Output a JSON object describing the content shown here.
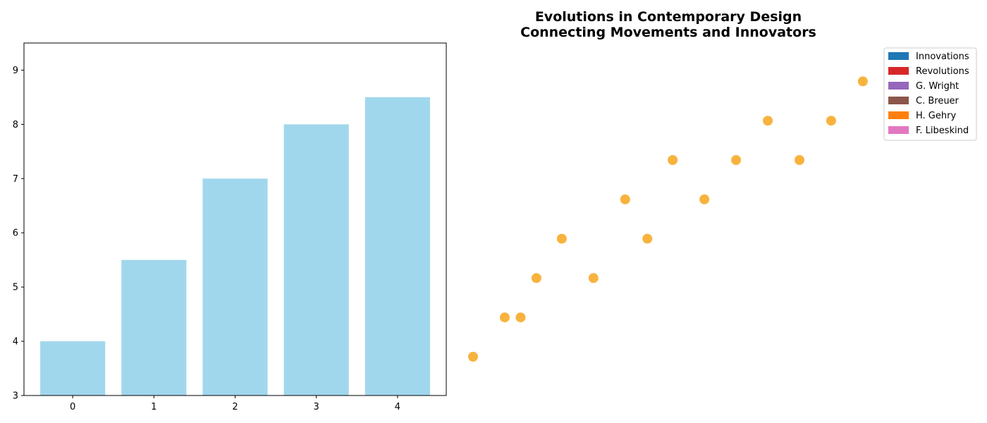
{
  "chart_data": [
    {
      "type": "bar",
      "categories": [
        "0",
        "1",
        "2",
        "3",
        "4"
      ],
      "values": [
        4.0,
        5.5,
        7.0,
        8.0,
        8.5
      ],
      "ylim": [
        3,
        9.5
      ],
      "yticks": [
        3,
        4,
        5,
        6,
        7,
        8,
        9
      ],
      "color": "#a1d7ed",
      "grid": false
    },
    {
      "type": "scatter",
      "title": [
        "Evolutions in Contemporary Design",
        "Connecting Movements and Innovators"
      ],
      "axes_visible": false,
      "marker_color": "#f7a823",
      "points": [
        {
          "x": 0.0,
          "y": 1
        },
        {
          "x": 0.1,
          "y": 2
        },
        {
          "x": 0.15,
          "y": 2
        },
        {
          "x": 0.2,
          "y": 3
        },
        {
          "x": 0.28,
          "y": 4
        },
        {
          "x": 0.38,
          "y": 3
        },
        {
          "x": 0.48,
          "y": 5
        },
        {
          "x": 0.55,
          "y": 4
        },
        {
          "x": 0.63,
          "y": 6
        },
        {
          "x": 0.73,
          "y": 5
        },
        {
          "x": 0.83,
          "y": 6
        },
        {
          "x": 0.93,
          "y": 7
        },
        {
          "x": 1.03,
          "y": 6
        },
        {
          "x": 1.13,
          "y": 7
        },
        {
          "x": 1.23,
          "y": 8
        }
      ],
      "legend": {
        "placement": "top-right",
        "entries": [
          {
            "label": "Innovations",
            "color": "#1f77b4"
          },
          {
            "label": "Revolutions",
            "color": "#d62728"
          },
          {
            "label": "G. Wright",
            "color": "#9467bd"
          },
          {
            "label": "C. Breuer",
            "color": "#8c564b"
          },
          {
            "label": "H. Gehry",
            "color": "#ff7f0e"
          },
          {
            "label": "F. Libeskind",
            "color": "#e377c2"
          }
        ]
      }
    }
  ]
}
